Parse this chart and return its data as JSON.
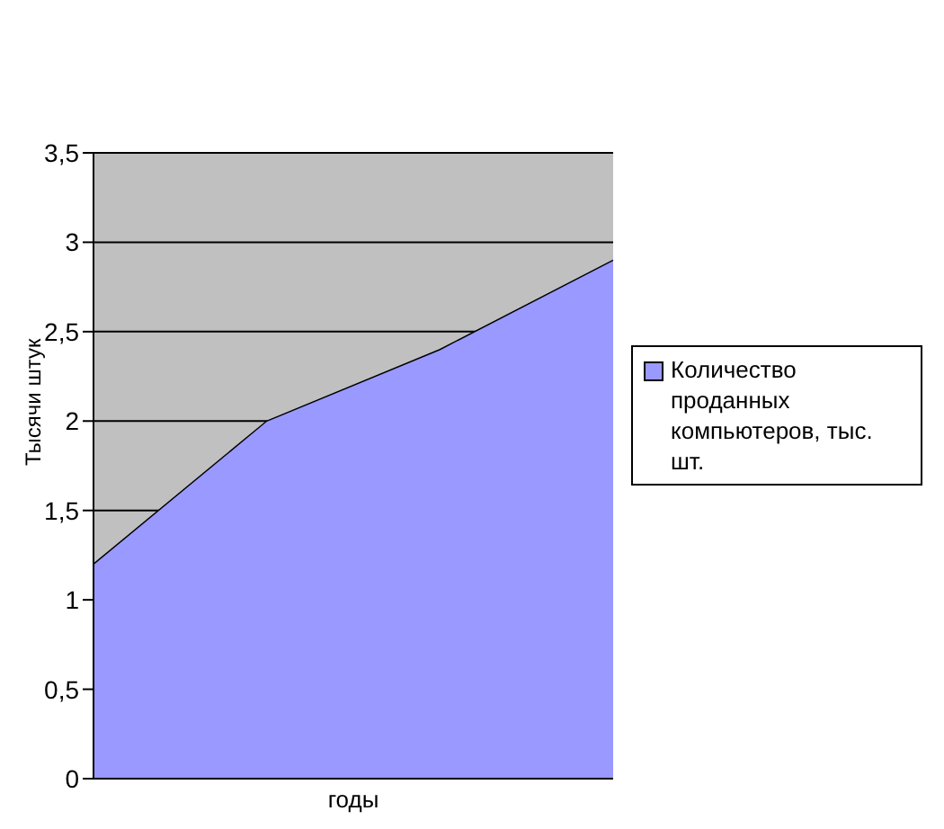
{
  "chart_data": {
    "type": "area",
    "xlabel": "годы",
    "ylabel": "Тысячи штук",
    "categories": [
      null,
      null,
      null,
      null
    ],
    "series": [
      {
        "name": "Количество проданных компьютеров, тыс. шт.",
        "color": "#9999ff",
        "values": [
          1.2,
          2,
          2.4,
          2.9
        ]
      }
    ],
    "ylim": [
      0,
      3.5
    ],
    "yticks": [
      0,
      {
        "value": 0.5,
        "label": "0,5"
      },
      1,
      {
        "value": 1.5,
        "label": "1,5"
      },
      2,
      {
        "value": 2.5,
        "label": "2,5"
      },
      3,
      {
        "value": 3.5,
        "label": "3,5"
      }
    ],
    "grid": "y",
    "legend": "right"
  }
}
